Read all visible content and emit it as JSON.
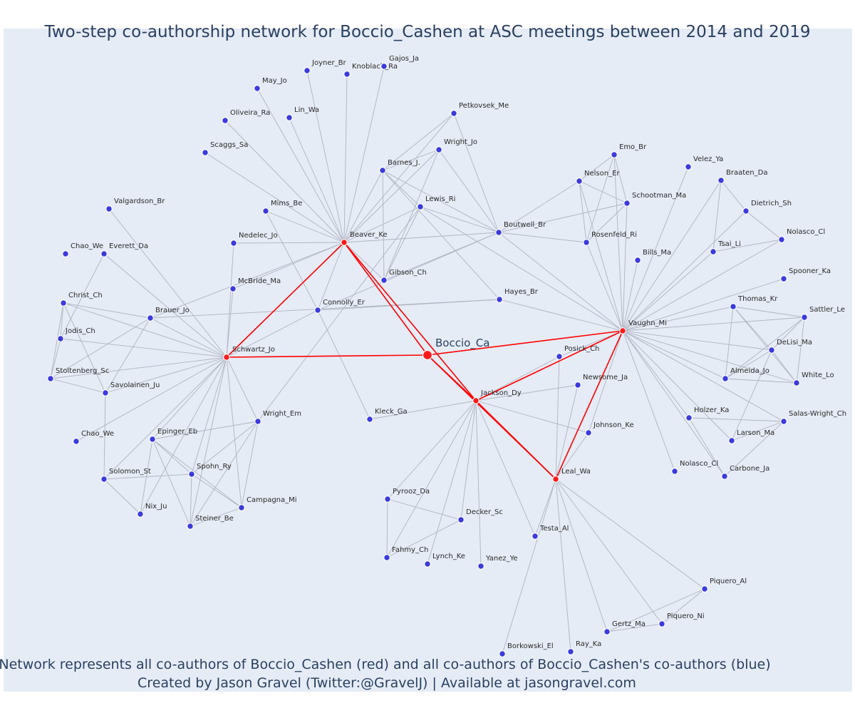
{
  "title": "Two-step co-authorship network for Boccio_Cashen at ASC meetings between 2014 and 2019",
  "footer": {
    "line1": "Network represents all co-authors of Boccio_Cashen (red) and all co-authors of Boccio_Cashen's co-authors (blue)",
    "line2": "Created by Jason Gravel (Twitter:@GravelJ) | Available at jasongravel.com"
  },
  "colors": {
    "panel": "#e5ecf6",
    "focal": "#ff0000",
    "coauthor": "#3b3bdc",
    "edge": "#b0b4c0",
    "title": "#2a3f5f"
  },
  "network": {
    "center": "Boccio_Ca",
    "direct_coauthors": [
      "Beaver_Ke",
      "Schwartz_Jo",
      "Jackson_Dy",
      "Vaughn_Mi",
      "Leal_Wa"
    ],
    "nodes": [
      "Boccio_Ca",
      "Beaver_Ke",
      "Schwartz_Jo",
      "Jackson_Dy",
      "Vaughn_Mi",
      "Leal_Wa",
      "Joyner_Br",
      "Knoblach_Ra",
      "Gajos_Ja",
      "May_Jo",
      "Oliveira_Ra",
      "Lin_Wa",
      "Scaggs_Sa",
      "Petkovsek_Me",
      "Wright_Jo",
      "Barnes_J.",
      "Lewis_Ri",
      "Mims_Be",
      "Nedelec_Jo",
      "McBride_Ma",
      "Connolly_Er",
      "Gibson_Ch",
      "Boutwell_Br",
      "Hayes_Br",
      "Emo_Br",
      "Nelson_Er",
      "Schootman_Ma",
      "Rosenfeld_Ri",
      "Bills_Ma",
      "Velez_Ya",
      "Braaten_Da",
      "Dietrich_Sh",
      "Nolasco_Cl",
      "Tsai_Li",
      "Spooner_Ka",
      "Thomas_Kr",
      "Sattler_Le",
      "DeLisi_Ma",
      "Almeida_Jo",
      "White_Lo",
      "Holzer_Ka",
      "Salas-Wright_Ch",
      "Larson_Ma",
      "Nolasco_Cl_2",
      "Carbone_Ja",
      "Posick_Ch",
      "Newsome_Ja",
      "Johnson_Ke",
      "Kleck_Ga",
      "Valgardson_Br",
      "Chao_We",
      "Everett_Da",
      "Christ_Ch",
      "Brauer_Jo",
      "Jodis_Ch",
      "Stoltenberg_Sc",
      "Savolainen_Ju",
      "Chao_We_2",
      "Epinger_Eb",
      "Wright_Em",
      "Solomon_St",
      "Spohn_Ry",
      "Nix_Ju",
      "Campagna_Mi",
      "Steiner_Be",
      "Pyrooz_Da",
      "Decker_Sc",
      "Fahmy_Ch",
      "Lynch_Ke",
      "Yanez_Ye",
      "Testa_Al",
      "Piquero_Al",
      "Piquero_Ni",
      "Gertz_Ma",
      "Borkowski_El",
      "Ray_Ka"
    ],
    "labels": {
      "Boccio_Ca": "Boccio_Ca",
      "Beaver_Ke": "Beaver_Ke",
      "Schwartz_Jo": "Schwartz_Jo",
      "Jackson_Dy": "Jackson_Dy",
      "Vaughn_Mi": "Vaughn_Mi",
      "Leal_Wa": "Leal_Wa",
      "Joyner_Br": "Joyner_Br",
      "Knoblach_Ra": "Knoblach_Ra",
      "Gajos_Ja": "Gajos_Ja",
      "May_Jo": "May_Jo",
      "Oliveira_Ra": "Oliveira_Ra",
      "Lin_Wa": "Lin_Wa",
      "Scaggs_Sa": "Scaggs_Sa",
      "Petkovsek_Me": "Petkovsek_Me",
      "Wright_Jo": "Wright_Jo",
      "Barnes_J.": "Barnes_J.",
      "Lewis_Ri": "Lewis_Ri",
      "Mims_Be": "Mims_Be",
      "Nedelec_Jo": "Nedelec_Jo",
      "McBride_Ma": "McBride_Ma",
      "Connolly_Er": "Connolly_Er",
      "Gibson_Ch": "Gibson_Ch",
      "Boutwell_Br": "Boutwell_Br",
      "Hayes_Br": "Hayes_Br",
      "Emo_Br": "Emo_Br",
      "Nelson_Er": "Nelson_Er",
      "Schootman_Ma": "Schootman_Ma",
      "Rosenfeld_Ri": "Rosenfeld_Ri",
      "Bills_Ma": "Bills_Ma",
      "Velez_Ya": "Velez_Ya",
      "Braaten_Da": "Braaten_Da",
      "Dietrich_Sh": "Dietrich_Sh",
      "Nolasco_Cl": "Nolasco_Cl",
      "Tsai_Li": "Tsai_Li",
      "Spooner_Ka": "Spooner_Ka",
      "Thomas_Kr": "Thomas_Kr",
      "Sattler_Le": "Sattler_Le",
      "DeLisi_Ma": "DeLisi_Ma",
      "Almeida_Jo": "Almeida_Jo",
      "White_Lo": "White_Lo",
      "Holzer_Ka": "Holzer_Ka",
      "Salas-Wright_Ch": "Salas-Wright_Ch",
      "Larson_Ma": "Larson_Ma",
      "Nolasco_Cl_2": "Nolasco_Cl",
      "Carbone_Ja": "Carbone_Ja",
      "Posick_Ch": "Posick_Ch",
      "Newsome_Ja": "Newsome_Ja",
      "Johnson_Ke": "Johnson_Ke",
      "Kleck_Ga": "Kleck_Ga",
      "Valgardson_Br": "Valgardson_Br",
      "Chao_We": "Chao_We",
      "Everett_Da": "Everett_Da",
      "Christ_Ch": "Christ_Ch",
      "Brauer_Jo": "Brauer_Jo",
      "Jodis_Ch": "Jodis_Ch",
      "Stoltenberg_Sc": "Stoltenberg_Sc",
      "Savolainen_Ju": "Savolainen_Ju",
      "Chao_We_2": "Chao_We",
      "Epinger_Eb": "Epinger_Eb",
      "Wright_Em": "Wright_Em",
      "Solomon_St": "Solomon_St",
      "Spohn_Ry": "Spohn_Ry",
      "Nix_Ju": "Nix_Ju",
      "Campagna_Mi": "Campagna_Mi",
      "Steiner_Be": "Steiner_Be",
      "Pyrooz_Da": "Pyrooz_Da",
      "Decker_Sc": "Decker_Sc",
      "Fahmy_Ch": "Fahmy_Ch",
      "Lynch_Ke": "Lynch_Ke",
      "Yanez_Ye": "Yanez_Ye",
      "Testa_Al": "Testa_Al",
      "Piquero_Al": "Piquero_Al",
      "Piquero_Ni": "Piquero_Ni",
      "Gertz_Ma": "Gertz_Ma",
      "Borkowski_El": "Borkowski_El",
      "Ray_Ka": "Ray_Ka"
    },
    "edges": [
      [
        "Boccio_Ca",
        "Beaver_Ke"
      ],
      [
        "Boccio_Ca",
        "Schwartz_Jo"
      ],
      [
        "Boccio_Ca",
        "Jackson_Dy"
      ],
      [
        "Boccio_Ca",
        "Vaughn_Mi"
      ],
      [
        "Boccio_Ca",
        "Leal_Wa"
      ],
      [
        "Beaver_Ke",
        "Schwartz_Jo"
      ],
      [
        "Beaver_Ke",
        "Jackson_Dy"
      ],
      [
        "Jackson_Dy",
        "Vaughn_Mi"
      ],
      [
        "Jackson_Dy",
        "Leal_Wa"
      ],
      [
        "Vaughn_Mi",
        "Leal_Wa"
      ],
      [
        "Beaver_Ke",
        "Joyner_Br"
      ],
      [
        "Beaver_Ke",
        "Knoblach_Ra"
      ],
      [
        "Beaver_Ke",
        "Gajos_Ja"
      ],
      [
        "Beaver_Ke",
        "May_Jo"
      ],
      [
        "Beaver_Ke",
        "Oliveira_Ra"
      ],
      [
        "Beaver_Ke",
        "Lin_Wa"
      ],
      [
        "Beaver_Ke",
        "Scaggs_Sa"
      ],
      [
        "Beaver_Ke",
        "Petkovsek_Me"
      ],
      [
        "Beaver_Ke",
        "Wright_Jo"
      ],
      [
        "Beaver_Ke",
        "Barnes_J."
      ],
      [
        "Beaver_Ke",
        "Lewis_Ri"
      ],
      [
        "Beaver_Ke",
        "Mims_Be"
      ],
      [
        "Beaver_Ke",
        "Nedelec_Jo"
      ],
      [
        "Beaver_Ke",
        "McBride_Ma"
      ],
      [
        "Beaver_Ke",
        "Connolly_Er"
      ],
      [
        "Beaver_Ke",
        "Gibson_Ch"
      ],
      [
        "Beaver_Ke",
        "Boutwell_Br"
      ],
      [
        "Beaver_Ke",
        "Brauer_Jo"
      ],
      [
        "Barnes_J.",
        "Petkovsek_Me"
      ],
      [
        "Barnes_J.",
        "Wright_Jo"
      ],
      [
        "Barnes_J.",
        "Lewis_Ri"
      ],
      [
        "Barnes_J.",
        "Boutwell_Br"
      ],
      [
        "Barnes_J.",
        "Gibson_Ch"
      ],
      [
        "Barnes_J.",
        "Hayes_Br"
      ],
      [
        "Wright_Jo",
        "Gibson_Ch"
      ],
      [
        "Wright_Jo",
        "Boutwell_Br"
      ],
      [
        "Petkovsek_Me",
        "Boutwell_Br"
      ],
      [
        "Lewis_Ri",
        "Boutwell_Br"
      ],
      [
        "Lewis_Ri",
        "Gibson_Ch"
      ],
      [
        "Lewis_Ri",
        "Wright_Em"
      ],
      [
        "Lewis_Ri",
        "Vaughn_Mi"
      ],
      [
        "Gibson_Ch",
        "Boutwell_Br"
      ],
      [
        "Connolly_Er",
        "Boutwell_Br"
      ],
      [
        "Connolly_Er",
        "Hayes_Br"
      ],
      [
        "Connolly_Er",
        "Kleck_Ga"
      ],
      [
        "Connolly_Er",
        "Mims_Be"
      ],
      [
        "Schwartz_Jo",
        "Connolly_Er"
      ],
      [
        "Schwartz_Jo",
        "McBride_Ma"
      ],
      [
        "Schwartz_Jo",
        "Nedelec_Jo"
      ],
      [
        "Schwartz_Jo",
        "Valgardson_Br"
      ],
      [
        "Schwartz_Jo",
        "Everett_Da"
      ],
      [
        "Schwartz_Jo",
        "Christ_Ch"
      ],
      [
        "Schwartz_Jo",
        "Brauer_Jo"
      ],
      [
        "Schwartz_Jo",
        "Jodis_Ch"
      ],
      [
        "Schwartz_Jo",
        "Stoltenberg_Sc"
      ],
      [
        "Schwartz_Jo",
        "Savolainen_Ju"
      ],
      [
        "Schwartz_Jo",
        "Chao_We_2"
      ],
      [
        "Schwartz_Jo",
        "Epinger_Eb"
      ],
      [
        "Schwartz_Jo",
        "Wright_Em"
      ],
      [
        "Schwartz_Jo",
        "Solomon_St"
      ],
      [
        "Schwartz_Jo",
        "Spohn_Ry"
      ],
      [
        "Schwartz_Jo",
        "Nix_Ju"
      ],
      [
        "Schwartz_Jo",
        "Campagna_Mi"
      ],
      [
        "Schwartz_Jo",
        "Steiner_Be"
      ],
      [
        "Brauer_Jo",
        "Christ_Ch"
      ],
      [
        "Brauer_Jo",
        "Stoltenberg_Sc"
      ],
      [
        "Brauer_Jo",
        "Savolainen_Ju"
      ],
      [
        "Brauer_Jo",
        "Hayes_Br"
      ],
      [
        "Christ_Ch",
        "Jodis_Ch"
      ],
      [
        "Christ_Ch",
        "Stoltenberg_Sc"
      ],
      [
        "Christ_Ch",
        "Savolainen_Ju"
      ],
      [
        "Jodis_Ch",
        "Stoltenberg_Sc"
      ],
      [
        "Stoltenberg_Sc",
        "Savolainen_Ju"
      ],
      [
        "Everett_Da",
        "Jodis_Ch"
      ],
      [
        "Savolainen_Ju",
        "Solomon_St"
      ],
      [
        "Epinger_Eb",
        "Spohn_Ry"
      ],
      [
        "Epinger_Eb",
        "Nix_Ju"
      ],
      [
        "Epinger_Eb",
        "Steiner_Be"
      ],
      [
        "Epinger_Eb",
        "Campagna_Mi"
      ],
      [
        "Epinger_Eb",
        "Wright_Em"
      ],
      [
        "Spohn_Ry",
        "Wright_Em"
      ],
      [
        "Spohn_Ry",
        "Steiner_Be"
      ],
      [
        "Spohn_Ry",
        "Campagna_Mi"
      ],
      [
        "Spohn_Ry",
        "Solomon_St"
      ],
      [
        "Solomon_St",
        "Nix_Ju"
      ],
      [
        "Wright_Em",
        "Steiner_Be"
      ],
      [
        "Wright_Em",
        "Campagna_Mi"
      ],
      [
        "Steiner_Be",
        "Campagna_Mi"
      ],
      [
        "Vaughn_Mi",
        "Hayes_Br"
      ],
      [
        "Vaughn_Mi",
        "Boutwell_Br"
      ],
      [
        "Vaughn_Mi",
        "Emo_Br"
      ],
      [
        "Vaughn_Mi",
        "Nelson_Er"
      ],
      [
        "Vaughn_Mi",
        "Schootman_Ma"
      ],
      [
        "Vaughn_Mi",
        "Rosenfeld_Ri"
      ],
      [
        "Vaughn_Mi",
        "Bills_Ma"
      ],
      [
        "Vaughn_Mi",
        "Velez_Ya"
      ],
      [
        "Vaughn_Mi",
        "Braaten_Da"
      ],
      [
        "Vaughn_Mi",
        "Dietrich_Sh"
      ],
      [
        "Vaughn_Mi",
        "Nolasco_Cl"
      ],
      [
        "Vaughn_Mi",
        "Tsai_Li"
      ],
      [
        "Vaughn_Mi",
        "Spooner_Ka"
      ],
      [
        "Vaughn_Mi",
        "Thomas_Kr"
      ],
      [
        "Vaughn_Mi",
        "Sattler_Le"
      ],
      [
        "Vaughn_Mi",
        "DeLisi_Ma"
      ],
      [
        "Vaughn_Mi",
        "Almeida_Jo"
      ],
      [
        "Vaughn_Mi",
        "White_Lo"
      ],
      [
        "Vaughn_Mi",
        "Holzer_Ka"
      ],
      [
        "Vaughn_Mi",
        "Salas-Wright_Ch"
      ],
      [
        "Vaughn_Mi",
        "Larson_Ma"
      ],
      [
        "Vaughn_Mi",
        "Nolasco_Cl_2"
      ],
      [
        "Vaughn_Mi",
        "Carbone_Ja"
      ],
      [
        "Vaughn_Mi",
        "Posick_Ch"
      ],
      [
        "Vaughn_Mi",
        "Johnson_Ke"
      ],
      [
        "Boutwell_Br",
        "Nelson_Er"
      ],
      [
        "Boutwell_Br",
        "Rosenfeld_Ri"
      ],
      [
        "Boutwell_Br",
        "Schootman_Ma"
      ],
      [
        "Nelson_Er",
        "Emo_Br"
      ],
      [
        "Nelson_Er",
        "Schootman_Ma"
      ],
      [
        "Nelson_Er",
        "Rosenfeld_Ri"
      ],
      [
        "Emo_Br",
        "Schootman_Ma"
      ],
      [
        "Emo_Br",
        "Rosenfeld_Ri"
      ],
      [
        "Schootman_Ma",
        "Rosenfeld_Ri"
      ],
      [
        "Braaten_Da",
        "Dietrich_Sh"
      ],
      [
        "Braaten_Da",
        "Tsai_Li"
      ],
      [
        "Dietrich_Sh",
        "Nolasco_Cl"
      ],
      [
        "Tsai_Li",
        "Nolasco_Cl"
      ],
      [
        "Thomas_Kr",
        "Sattler_Le"
      ],
      [
        "Thomas_Kr",
        "DeLisi_Ma"
      ],
      [
        "Thomas_Kr",
        "Almeida_Jo"
      ],
      [
        "Thomas_Kr",
        "White_Lo"
      ],
      [
        "Sattler_Le",
        "DeLisi_Ma"
      ],
      [
        "Sattler_Le",
        "Almeida_Jo"
      ],
      [
        "Sattler_Le",
        "White_Lo"
      ],
      [
        "DeLisi_Ma",
        "Almeida_Jo"
      ],
      [
        "DeLisi_Ma",
        "White_Lo"
      ],
      [
        "Almeida_Jo",
        "White_Lo"
      ],
      [
        "DeLisi_Ma",
        "Larson_Ma"
      ],
      [
        "Holzer_Ka",
        "Salas-Wright_Ch"
      ],
      [
        "Holzer_Ka",
        "Carbone_Ja"
      ],
      [
        "Salas-Wright_Ch",
        "Larson_Ma"
      ],
      [
        "Salas-Wright_Ch",
        "Carbone_Ja"
      ],
      [
        "Jackson_Dy",
        "Posick_Ch"
      ],
      [
        "Jackson_Dy",
        "Newsome_Ja"
      ],
      [
        "Jackson_Dy",
        "Johnson_Ke"
      ],
      [
        "Jackson_Dy",
        "Kleck_Ga"
      ],
      [
        "Jackson_Dy",
        "Pyrooz_Da"
      ],
      [
        "Jackson_Dy",
        "Decker_Sc"
      ],
      [
        "Jackson_Dy",
        "Fahmy_Ch"
      ],
      [
        "Jackson_Dy",
        "Lynch_Ke"
      ],
      [
        "Jackson_Dy",
        "Yanez_Ye"
      ],
      [
        "Jackson_Dy",
        "Testa_Al"
      ],
      [
        "Newsome_Ja",
        "Leal_Wa"
      ],
      [
        "Johnson_Ke",
        "Leal_Wa"
      ],
      [
        "Posick_Ch",
        "Leal_Wa"
      ],
      [
        "Pyrooz_Da",
        "Decker_Sc"
      ],
      [
        "Pyrooz_Da",
        "Fahmy_Ch"
      ],
      [
        "Decker_Sc",
        "Fahmy_Ch"
      ],
      [
        "Leal_Wa",
        "Testa_Al"
      ],
      [
        "Leal_Wa",
        "Piquero_Al"
      ],
      [
        "Leal_Wa",
        "Piquero_Ni"
      ],
      [
        "Leal_Wa",
        "Gertz_Ma"
      ],
      [
        "Leal_Wa",
        "Borkowski_El"
      ],
      [
        "Leal_Wa",
        "Ray_Ka"
      ],
      [
        "Piquero_Al",
        "Piquero_Ni"
      ],
      [
        "Piquero_Al",
        "Gertz_Ma"
      ],
      [
        "Gertz_Ma",
        "Piquero_Ni"
      ]
    ]
  }
}
